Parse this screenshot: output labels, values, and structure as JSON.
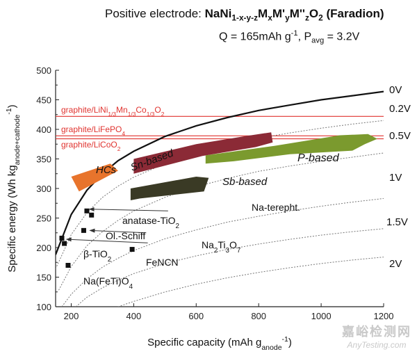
{
  "header": {
    "line1_prefix": "Positive electrode: ",
    "formula": {
      "a": "NaNi",
      "a_sub": "1-x-y-z",
      "b": "M",
      "b_sub": "x",
      "c": "M'",
      "c_sub": "y",
      "d": "M''",
      "d_sub": "z",
      "e": "O",
      "e_sub": "2"
    },
    "line1_suffix": " (Faradion)",
    "q_text": "Q = 165mAh g",
    "q_sup": "-1",
    "p_text": ", P",
    "p_sub": "avg",
    "p_value": " = 3.2V"
  },
  "watermark": {
    "cn": "嘉峪检测网",
    "en": "AnyTesting.com"
  },
  "chart_data": {
    "type": "scatter",
    "xlabel": "Specific capacity (mAh g",
    "xlabel_sub": "anode",
    "xlabel_sup": "-1",
    "xlabel_end": ")",
    "ylabel": "Specific energy (Wh kg",
    "ylabel_sub": "anode+cathode",
    "ylabel_sup": "-1",
    "ylabel_end": ")",
    "xlim": [
      150,
      1200
    ],
    "ylim": [
      100,
      500
    ],
    "xticks": [
      200,
      400,
      600,
      800,
      1000,
      1200
    ],
    "yticks": [
      100,
      150,
      200,
      250,
      300,
      350,
      400,
      450,
      500
    ],
    "voltage_curves": [
      {
        "label": "0V",
        "style": "solid",
        "points": [
          [
            150,
            188
          ],
          [
            200,
            256
          ],
          [
            250,
            297
          ],
          [
            300,
            325
          ],
          [
            350,
            347
          ],
          [
            400,
            363
          ],
          [
            500,
            388
          ],
          [
            600,
            406
          ],
          [
            700,
            420
          ],
          [
            800,
            432
          ],
          [
            900,
            441
          ],
          [
            1000,
            450
          ],
          [
            1100,
            457
          ],
          [
            1200,
            464
          ]
        ]
      },
      {
        "label": "0.2V",
        "style": "dotted",
        "points": [
          [
            150,
            164
          ],
          [
            200,
            222
          ],
          [
            250,
            259
          ],
          [
            300,
            285
          ],
          [
            350,
            304
          ],
          [
            400,
            319
          ],
          [
            500,
            342
          ],
          [
            600,
            360
          ],
          [
            700,
            374
          ],
          [
            800,
            385
          ],
          [
            900,
            394
          ],
          [
            1000,
            402
          ],
          [
            1100,
            409
          ],
          [
            1200,
            415
          ]
        ]
      },
      {
        "label": "0.5V",
        "style": "dotted",
        "points": [
          [
            160,
            128
          ],
          [
            200,
            168
          ],
          [
            250,
            203
          ],
          [
            300,
            227
          ],
          [
            350,
            246
          ],
          [
            400,
            262
          ],
          [
            500,
            285
          ],
          [
            600,
            303
          ],
          [
            700,
            317
          ],
          [
            800,
            329
          ],
          [
            900,
            338
          ],
          [
            1000,
            346
          ],
          [
            1100,
            353
          ],
          [
            1200,
            360
          ]
        ]
      },
      {
        "label": "1V",
        "style": "dotted",
        "points": [
          [
            170,
            100
          ],
          [
            200,
            121
          ],
          [
            250,
            147
          ],
          [
            300,
            167
          ],
          [
            350,
            182
          ],
          [
            400,
            195
          ],
          [
            500,
            215
          ],
          [
            600,
            230
          ],
          [
            700,
            243
          ],
          [
            800,
            253
          ],
          [
            900,
            262
          ],
          [
            1000,
            270
          ],
          [
            1100,
            277
          ],
          [
            1200,
            283
          ]
        ]
      },
      {
        "label": "1.5V",
        "style": "dotted",
        "points": [
          [
            215,
            100
          ],
          [
            250,
            116
          ],
          [
            300,
            132
          ],
          [
            350,
            145
          ],
          [
            400,
            156
          ],
          [
            500,
            173
          ],
          [
            600,
            186
          ],
          [
            700,
            197
          ],
          [
            800,
            206
          ],
          [
            900,
            214
          ],
          [
            1000,
            221
          ],
          [
            1100,
            227
          ],
          [
            1200,
            232
          ]
        ]
      },
      {
        "label": "2V",
        "style": "dotted",
        "points": [
          [
            350,
            100
          ],
          [
            400,
            109
          ],
          [
            500,
            125
          ],
          [
            600,
            138
          ],
          [
            700,
            149
          ],
          [
            800,
            158
          ],
          [
            900,
            166
          ],
          [
            1000,
            173
          ],
          [
            1100,
            179
          ],
          [
            1200,
            184
          ]
        ]
      }
    ],
    "reference_lines": [
      {
        "label": "graphite/LiNi",
        "sub1": "1/3",
        "m1": "Mn",
        "sub2": "1/3",
        "m2": "Co",
        "sub3": "1/3",
        "m3": "O",
        "sub4": "2",
        "value": 422
      },
      {
        "label": "graphite/LiFePO",
        "sub1": "4",
        "value": 389
      },
      {
        "label": "graphite/LiCoO",
        "sub1": "2",
        "value": 384
      }
    ],
    "regions": [
      {
        "name": "HCs",
        "color": "#e8742c",
        "points": [
          [
            200,
            320
          ],
          [
            325,
            342
          ],
          [
            350,
            330
          ],
          [
            225,
            295
          ]
        ]
      },
      {
        "name": "Sn-based",
        "color": "#8b2a36",
        "points": [
          [
            400,
            350
          ],
          [
            600,
            375
          ],
          [
            750,
            388
          ],
          [
            840,
            395
          ],
          [
            845,
            378
          ],
          [
            790,
            370
          ],
          [
            620,
            355
          ],
          [
            400,
            325
          ]
        ]
      },
      {
        "name": "Sb-based",
        "color": "#3a3a25",
        "points": [
          [
            390,
            300
          ],
          [
            600,
            320
          ],
          [
            640,
            318
          ],
          [
            625,
            295
          ],
          [
            420,
            283
          ],
          [
            390,
            280
          ]
        ]
      },
      {
        "name": "P-based",
        "color": "#7b9a2e",
        "points": [
          [
            630,
            356
          ],
          [
            850,
            372
          ],
          [
            1060,
            390
          ],
          [
            1150,
            392
          ],
          [
            1180,
            384
          ],
          [
            1140,
            375
          ],
          [
            1100,
            364
          ],
          [
            900,
            358
          ],
          [
            720,
            346
          ],
          [
            630,
            342
          ]
        ]
      }
    ],
    "points": [
      {
        "name": "anatase-TiO2",
        "x": 250,
        "y": 262
      },
      {
        "name": "anatase-TiO2",
        "x": 265,
        "y": 255
      },
      {
        "name": "Ol.-Schiff",
        "x": 240,
        "y": 229
      },
      {
        "name": "Na2Ti3O7",
        "x": 170,
        "y": 216
      },
      {
        "name": "β-TiO2",
        "x": 178,
        "y": 207
      },
      {
        "name": "FeNCN",
        "x": 395,
        "y": 197
      },
      {
        "name": "Na(FeTi)O4",
        "x": 190,
        "y": 170
      }
    ],
    "annotations": {
      "hcs": "HCs",
      "sn": "Sn-based",
      "sb": "Sb-based",
      "p": "P-based",
      "na_terepht": "Na-terepht.",
      "anatase": "anatase-TiO",
      "anatase_sub": "2",
      "ol_schiff": "Ol.-Schiff",
      "na2ti3o7": {
        "a": "Na",
        "s1": "2",
        "b": "Ti",
        "s2": "3",
        "c": "O",
        "s3": "7"
      },
      "beta": "β-TiO",
      "beta_sub": "2",
      "fencn": "FeNCN",
      "nafeti": "Na(FeTi)O",
      "nafeti_sub": "4"
    },
    "arrows": [
      {
        "from": [
          510,
          262
        ],
        "to": [
          258,
          265
        ]
      },
      {
        "from": [
          440,
          225
        ],
        "to": [
          260,
          229
        ]
      },
      {
        "from": [
          445,
          208
        ],
        "to": [
          185,
          214
        ]
      }
    ]
  }
}
